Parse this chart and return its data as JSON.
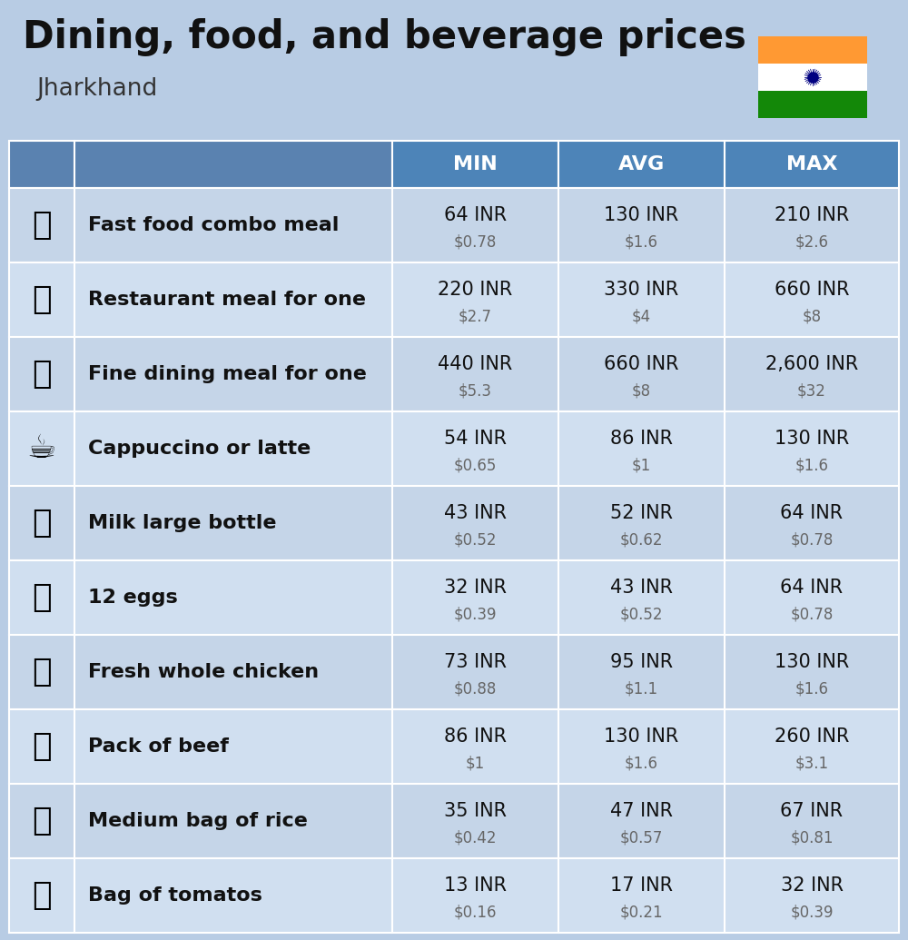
{
  "title": "Dining, food, and beverage prices",
  "subtitle": "Jharkhand",
  "bg_color": "#b8cce4",
  "header_color": "#4d84b8",
  "header_text_color": "#ffffff",
  "row_colors": [
    "#c5d5e8",
    "#d0dff0"
  ],
  "col_label_color": "#5a82b0",
  "columns": [
    "MIN",
    "AVG",
    "MAX"
  ],
  "rows": [
    {
      "label": "Fast food combo meal",
      "min_inr": "64 INR",
      "min_usd": "$0.78",
      "avg_inr": "130 INR",
      "avg_usd": "$1.6",
      "max_inr": "210 INR",
      "max_usd": "$2.6"
    },
    {
      "label": "Restaurant meal for one",
      "min_inr": "220 INR",
      "min_usd": "$2.7",
      "avg_inr": "330 INR",
      "avg_usd": "$4",
      "max_inr": "660 INR",
      "max_usd": "$8"
    },
    {
      "label": "Fine dining meal for one",
      "min_inr": "440 INR",
      "min_usd": "$5.3",
      "avg_inr": "660 INR",
      "avg_usd": "$8",
      "max_inr": "2,600 INR",
      "max_usd": "$32"
    },
    {
      "label": "Cappuccino or latte",
      "min_inr": "54 INR",
      "min_usd": "$0.65",
      "avg_inr": "86 INR",
      "avg_usd": "$1",
      "max_inr": "130 INR",
      "max_usd": "$1.6"
    },
    {
      "label": "Milk large bottle",
      "min_inr": "43 INR",
      "min_usd": "$0.52",
      "avg_inr": "52 INR",
      "avg_usd": "$0.62",
      "max_inr": "64 INR",
      "max_usd": "$0.78"
    },
    {
      "label": "12 eggs",
      "min_inr": "32 INR",
      "min_usd": "$0.39",
      "avg_inr": "43 INR",
      "avg_usd": "$0.52",
      "max_inr": "64 INR",
      "max_usd": "$0.78"
    },
    {
      "label": "Fresh whole chicken",
      "min_inr": "73 INR",
      "min_usd": "$0.88",
      "avg_inr": "95 INR",
      "avg_usd": "$1.1",
      "max_inr": "130 INR",
      "max_usd": "$1.6"
    },
    {
      "label": "Pack of beef",
      "min_inr": "86 INR",
      "min_usd": "$1",
      "avg_inr": "130 INR",
      "avg_usd": "$1.6",
      "max_inr": "260 INR",
      "max_usd": "$3.1"
    },
    {
      "label": "Medium bag of rice",
      "min_inr": "35 INR",
      "min_usd": "$0.42",
      "avg_inr": "47 INR",
      "avg_usd": "$0.57",
      "max_inr": "67 INR",
      "max_usd": "$0.81"
    },
    {
      "label": "Bag of tomatos",
      "min_inr": "13 INR",
      "min_usd": "$0.16",
      "avg_inr": "17 INR",
      "avg_usd": "$0.21",
      "max_inr": "32 INR",
      "max_usd": "$0.39"
    }
  ],
  "title_fontsize": 30,
  "subtitle_fontsize": 19,
  "header_fontsize": 16,
  "label_fontsize": 16,
  "value_fontsize": 15,
  "usd_fontsize": 12,
  "icon_fontsize": 26,
  "flag_orange": "#FF9933",
  "flag_white": "#FFFFFF",
  "flag_green": "#138808",
  "flag_navy": "#000080",
  "white_divider": "#ffffff"
}
